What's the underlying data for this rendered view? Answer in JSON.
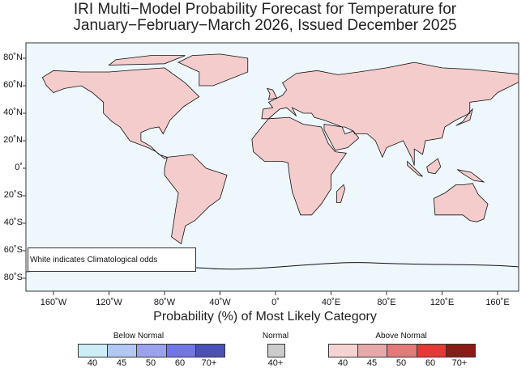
{
  "title": {
    "line1": "IRI Multi−Model Probability Forecast for Temperature for",
    "line2": "January−February−March 2026, Issued December 2025"
  },
  "axes": {
    "lat_labels": [
      "80˚N",
      "60˚N",
      "40˚N",
      "20˚N",
      "0˚",
      "20˚S",
      "40˚S",
      "60˚S",
      "80˚S"
    ],
    "lon_labels": [
      "160˚W",
      "120˚W",
      "80˚W",
      "40˚W",
      "0˚",
      "40˚E",
      "80˚E",
      "120˚E",
      "160˚E"
    ],
    "xtitle": "Probability (%) of Most Likely Category"
  },
  "note": "White indicates Climatological odds",
  "legend": {
    "below": {
      "title": "Below Normal",
      "ticks": [
        "40",
        "45",
        "50",
        "60",
        "70+"
      ],
      "colors": [
        "#cdeef6",
        "#b2c8f4",
        "#9aa2ee",
        "#7276e4",
        "#4b4fb8"
      ]
    },
    "normal": {
      "title": "Normal",
      "ticks": [
        "40+"
      ],
      "colors": [
        "#cccccc"
      ]
    },
    "above": {
      "title": "Above Normal",
      "ticks": [
        "40",
        "45",
        "50",
        "60",
        "70+"
      ],
      "colors": [
        "#f6d3d3",
        "#e5a9a9",
        "#e37a7a",
        "#e23a35",
        "#8a1c18"
      ]
    }
  },
  "colors": {
    "ocean": "#eef7fc",
    "frame": "#333333"
  }
}
